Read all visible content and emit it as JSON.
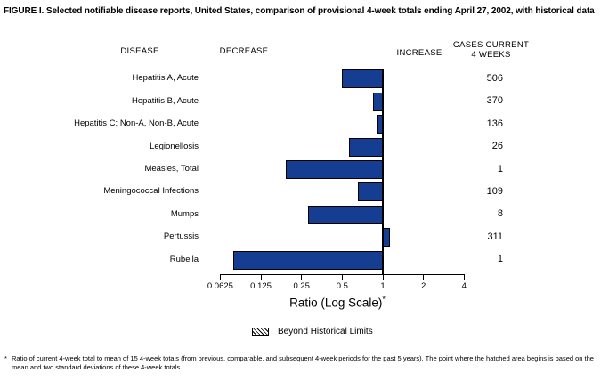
{
  "title": "FIGURE I. Selected notifiable disease reports, United States, comparison of provisional 4-week totals ending April 27, 2002, with historical data",
  "columns": {
    "disease": "DISEASE",
    "decrease": "DECREASE",
    "increase": "INCREASE",
    "cases_line1": "CASES CURRENT",
    "cases_line2": "4 WEEKS"
  },
  "chart_data": {
    "type": "bar",
    "orientation": "horizontal",
    "scale": "log",
    "baseline_ratio": 1,
    "bar_color": "#153d91",
    "xlabel": "Ratio (Log Scale)",
    "xlabel_note_marker": "*",
    "xlim": [
      0.0625,
      4
    ],
    "axis_ticks": [
      {
        "label": "0.0625",
        "value": 0.0625
      },
      {
        "label": "0.125",
        "value": 0.125
      },
      {
        "label": "0.25",
        "value": 0.25
      },
      {
        "label": "0.5",
        "value": 0.5
      },
      {
        "label": "1",
        "value": 1
      },
      {
        "label": "2",
        "value": 2
      },
      {
        "label": "4",
        "value": 4
      }
    ],
    "rows": [
      {
        "label": "Hepatitis A, Acute",
        "ratio": 0.5,
        "cases": "506"
      },
      {
        "label": "Hepatitis B, Acute",
        "ratio": 0.84,
        "cases": "370"
      },
      {
        "label": "Hepatitis C; Non-A, Non-B, Acute",
        "ratio": 0.9,
        "cases": "136"
      },
      {
        "label": "Legionellosis",
        "ratio": 0.56,
        "cases": "26"
      },
      {
        "label": "Measles, Total",
        "ratio": 0.19,
        "cases": "1"
      },
      {
        "label": "Meningococcal Infections",
        "ratio": 0.65,
        "cases": "109"
      },
      {
        "label": "Mumps",
        "ratio": 0.28,
        "cases": "8"
      },
      {
        "label": "Pertussis",
        "ratio": 1.13,
        "cases": "311"
      },
      {
        "label": "Rubella",
        "ratio": 0.078,
        "cases": "1"
      }
    ]
  },
  "legend": {
    "swatch": "hatched-box",
    "label": "Beyond Historical Limits"
  },
  "footnote": {
    "marker": "*",
    "text": "Ratio of current 4-week total to mean of 15 4-week totals (from previous, comparable, and subsequent 4-week periods for the past 5 years). The point where the hatched area begins is based on the mean and two standard deviations of these 4-week totals."
  }
}
